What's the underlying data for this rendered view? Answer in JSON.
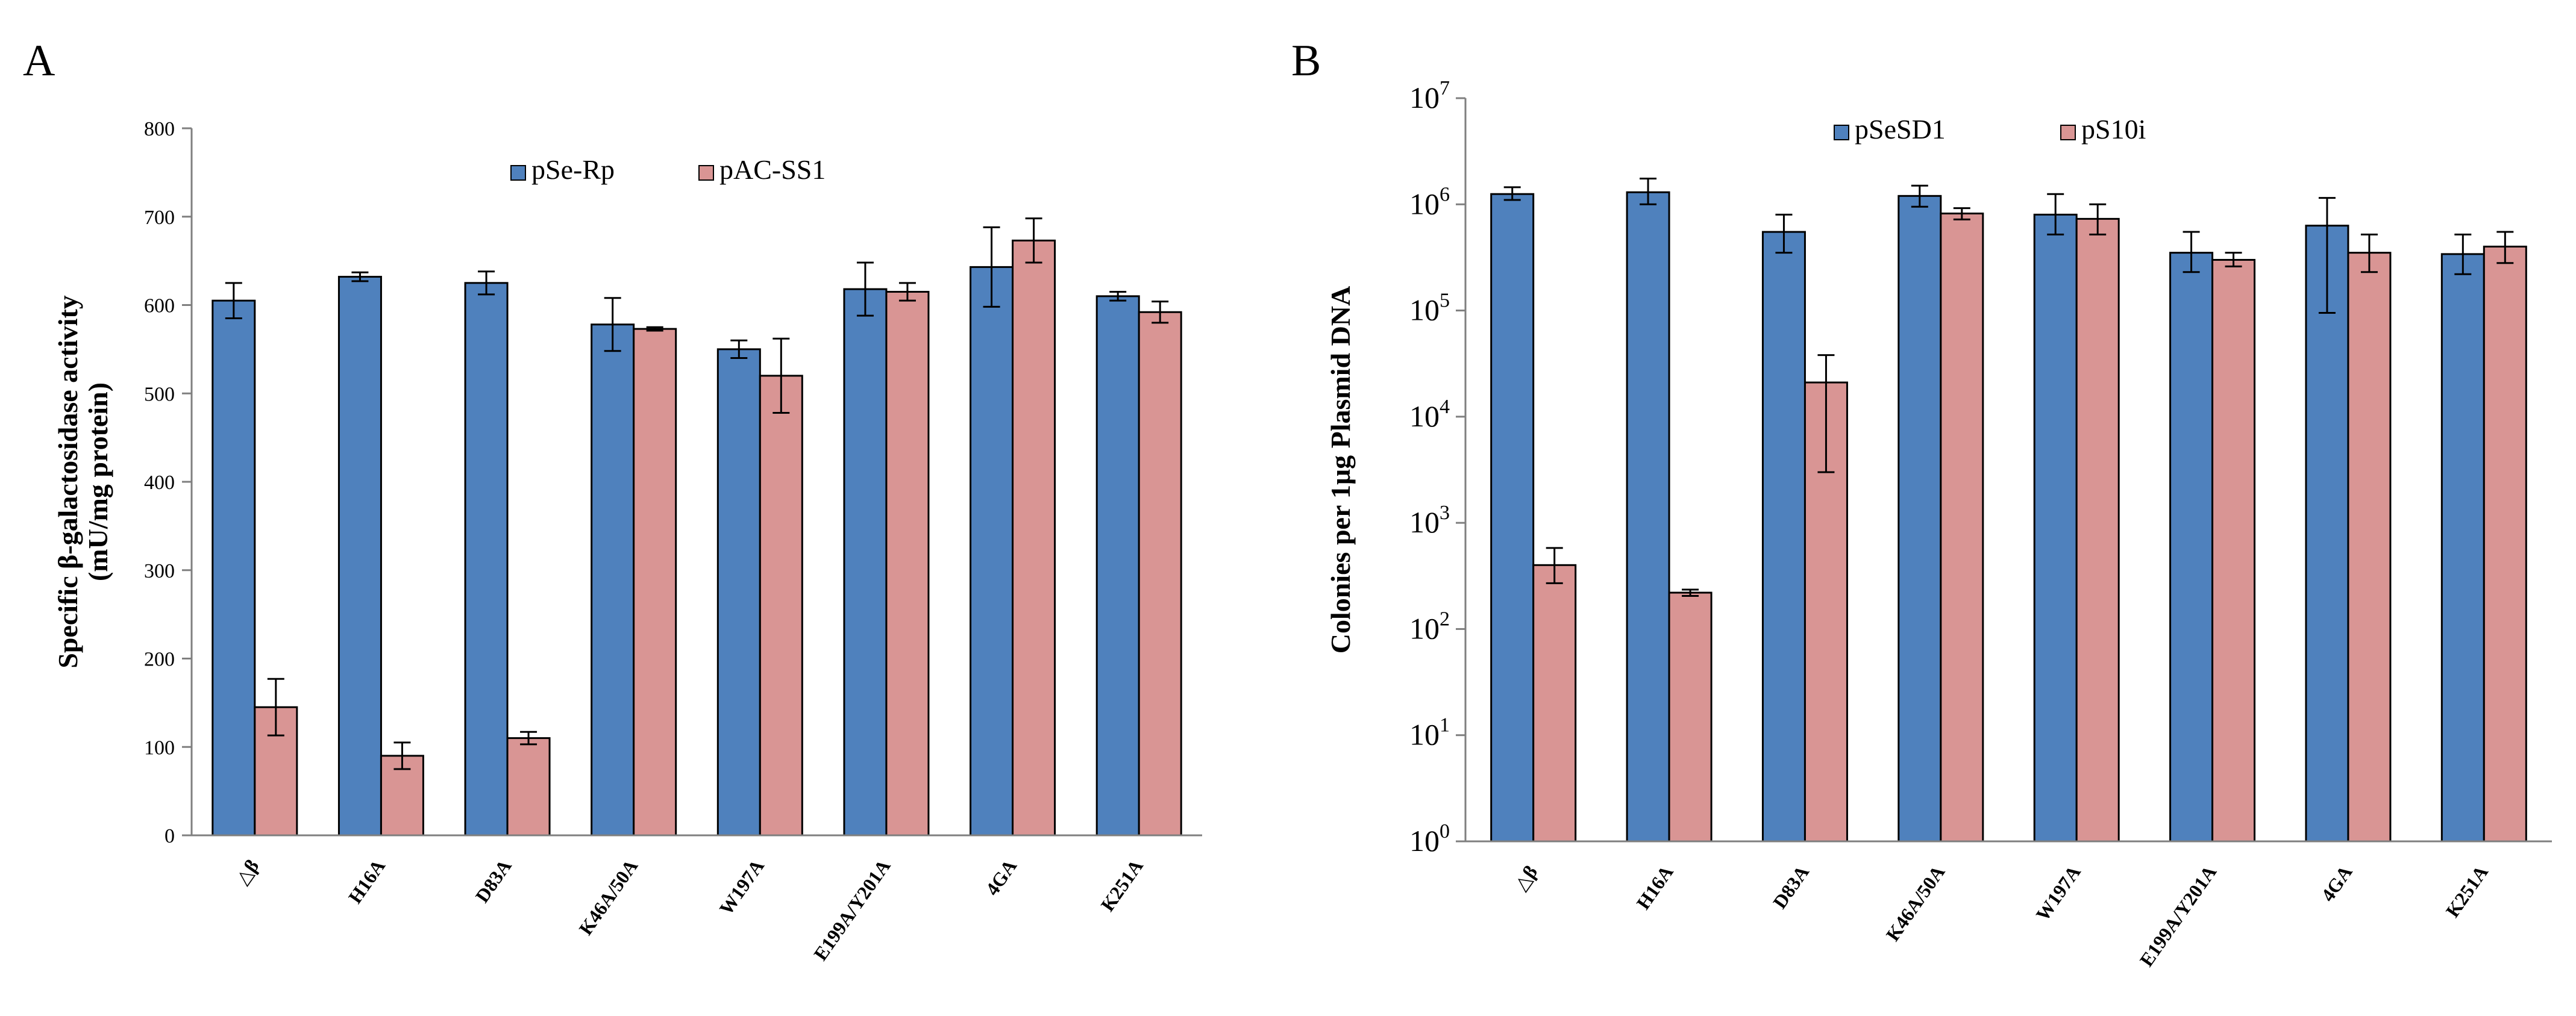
{
  "chart_data": [
    {
      "panel": "A",
      "type": "bar",
      "title": "",
      "xlabel": "",
      "ylabel_line1": "Specific  β-galactosidase activity",
      "ylabel_line2": "(mU/mg protein)",
      "scale": "linear",
      "ylim": [
        0,
        800
      ],
      "yticks": [
        0,
        100,
        200,
        300,
        400,
        500,
        600,
        700,
        800
      ],
      "ytick_labels": [
        "0",
        "100",
        "200",
        "300",
        "400",
        "500",
        "600",
        "700",
        "800"
      ],
      "categories": [
        "△β",
        "H16A",
        "D83A",
        "K46A/50A",
        "W197A",
        "E199A/Y201A",
        "4GA",
        "K251A"
      ],
      "series": [
        {
          "name": "pSe-Rp",
          "color": "#4F81BD",
          "values": [
            605,
            632,
            625,
            578,
            550,
            618,
            643,
            610
          ],
          "errors": [
            20,
            5,
            13,
            30,
            10,
            30,
            45,
            5
          ]
        },
        {
          "name": "pAC-SS1",
          "color": "#D99594",
          "values": [
            145,
            90,
            110,
            573,
            520,
            615,
            673,
            592
          ],
          "errors": [
            32,
            15,
            7,
            2,
            42,
            10,
            25,
            12
          ]
        }
      ],
      "legend": "top-center"
    },
    {
      "panel": "B",
      "type": "bar",
      "title": "",
      "xlabel": "",
      "ylabel": "Colonies  per 1μg  Plasmid DNA",
      "scale": "log",
      "ylim": [
        1,
        10000000
      ],
      "yticks": [
        1,
        10,
        100,
        1000,
        10000,
        100000,
        1000000,
        10000000
      ],
      "ytick_labels": [
        {
          "base": "10",
          "exp": "0"
        },
        {
          "base": "10",
          "exp": "1"
        },
        {
          "base": "10",
          "exp": "2"
        },
        {
          "base": "10",
          "exp": "3"
        },
        {
          "base": "10",
          "exp": "4"
        },
        {
          "base": "10",
          "exp": "5"
        },
        {
          "base": "10",
          "exp": "6"
        },
        {
          "base": "10",
          "exp": "7"
        }
      ],
      "categories": [
        "△β",
        "H16A",
        "D83A",
        "K46A/50A",
        "W197A",
        "E199A/Y201A",
        "4GA",
        "K251A"
      ],
      "series": [
        {
          "name": "pSeSD1",
          "color": "#4F81BD",
          "values": [
            1250000,
            1300000,
            550000,
            1200000,
            800000,
            350000,
            630000,
            340000
          ],
          "err_low": [
            1100000,
            1000000,
            350000,
            950000,
            520000,
            230000,
            95000,
            220000
          ],
          "err_high": [
            1450000,
            1750000,
            800000,
            1500000,
            1250000,
            550000,
            1150000,
            520000
          ]
        },
        {
          "name": "pS10i",
          "color": "#D99594",
          "values": [
            400,
            220,
            21000,
            820000,
            730000,
            300000,
            350000,
            400000
          ],
          "err_low": [
            270,
            205,
            3000,
            720000,
            520000,
            260000,
            230000,
            280000
          ],
          "err_high": [
            580,
            235,
            38000,
            920000,
            1000000,
            350000,
            520000,
            550000
          ]
        }
      ],
      "legend": "top-center"
    }
  ]
}
